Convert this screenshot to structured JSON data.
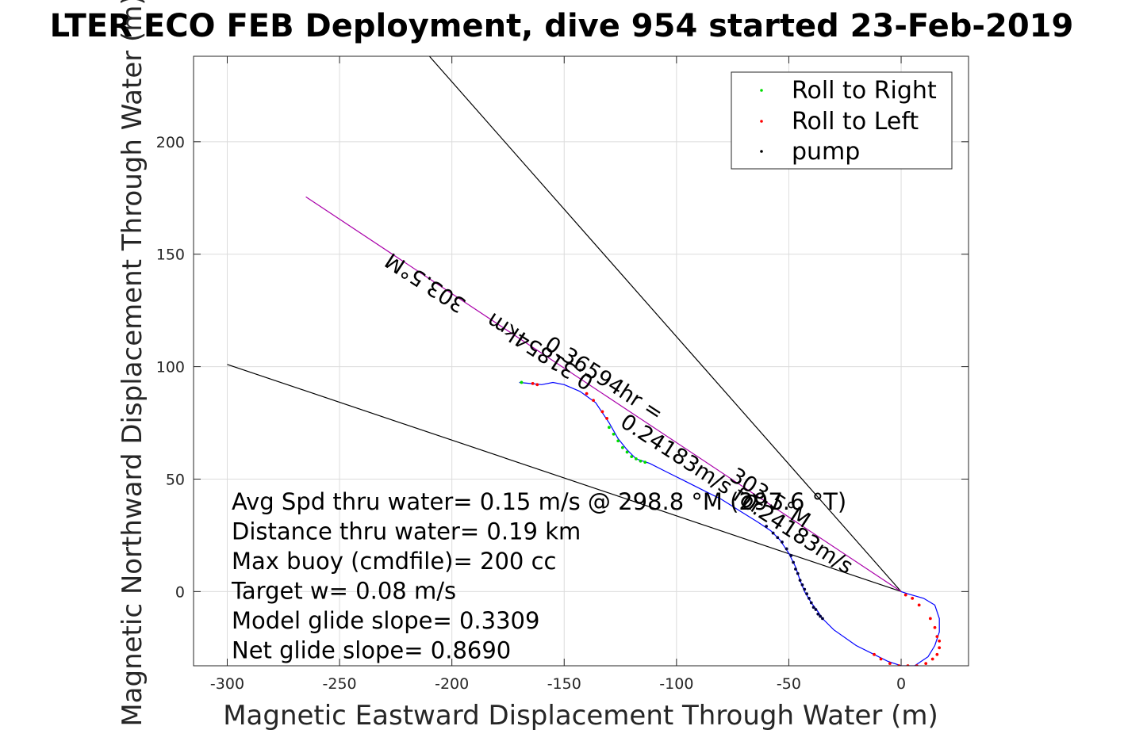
{
  "chart_data": {
    "type": "scatter",
    "title": "LTER ECO FEB Deployment, dive 954 started 23-Feb-2019",
    "xlabel": "Magnetic Eastward Displacement Through Water (m)",
    "ylabel": "Magnetic Northward Displacement Through Water (m)",
    "xlim": [
      -315,
      30
    ],
    "ylim": [
      -33,
      238
    ],
    "xticks": [
      -300,
      -250,
      -200,
      -150,
      -100,
      -50,
      0
    ],
    "yticks": [
      0,
      50,
      100,
      150,
      200
    ],
    "grid": true,
    "legend": {
      "placement": "top-right",
      "entries": [
        {
          "name": "Roll to Right",
          "color": "#00dd00"
        },
        {
          "name": "Roll to Left",
          "color": "#ff0000"
        },
        {
          "name": "pump",
          "color": "#000000"
        }
      ]
    },
    "track": {
      "name": "dive track",
      "color": "#0000ff",
      "x": [
        -170,
        -165,
        -160,
        -155,
        -150,
        -143,
        -136,
        -130,
        -126,
        -122,
        -118,
        -112,
        -104,
        -96,
        -88,
        -80,
        -72,
        -64,
        -58,
        -54,
        -50,
        -47,
        -45,
        -43,
        -40,
        -37,
        -35,
        -30,
        -20,
        -12,
        -6,
        0,
        6,
        12,
        15,
        17,
        17,
        15,
        10,
        3,
        0
      ],
      "y": [
        93,
        92.5,
        92,
        93,
        92,
        89,
        84,
        75,
        68,
        63,
        59,
        57,
        53,
        49,
        45,
        41,
        36,
        31,
        27,
        23,
        17,
        11,
        5,
        0,
        -5,
        -9,
        -12,
        -17,
        -24,
        -28,
        -31,
        -33,
        -33,
        -29,
        -24,
        -18,
        -12,
        -6,
        -3,
        -1,
        0
      ]
    },
    "rays": [
      {
        "x": [
          0,
          -210
        ],
        "y": [
          0,
          238
        ],
        "color": "#000000"
      },
      {
        "x": [
          0,
          -300
        ],
        "y": [
          0,
          101
        ],
        "color": "#000000"
      },
      {
        "x": [
          0,
          -265
        ],
        "y": [
          0,
          175.5
        ],
        "color": "#aa00aa"
      }
    ],
    "marker_groups": [
      {
        "legend": "Roll to Right",
        "color": "#00dd00",
        "x": [
          -169,
          -130,
          -128,
          -126,
          -124,
          -122,
          -120,
          -118,
          -116,
          -114
        ],
        "y": [
          93,
          73,
          70,
          67,
          64,
          62,
          60,
          59,
          58,
          57.5
        ]
      },
      {
        "legend": "Roll to Left",
        "color": "#ff0000",
        "x": [
          -164,
          -162,
          -140,
          -137,
          -133,
          -131,
          2,
          5,
          8,
          13,
          15,
          16,
          17,
          17,
          16,
          14,
          11,
          7,
          3,
          -1,
          -5,
          -9,
          -12
        ],
        "y": [
          92.5,
          92,
          88,
          85,
          80,
          77,
          -1.5,
          -3,
          -6,
          -12,
          -16,
          -20,
          -22,
          -25,
          -28,
          -30,
          -32,
          -33,
          -33,
          -33,
          -32,
          -30,
          -28
        ]
      },
      {
        "legend": "pump",
        "color": "#00003a",
        "x": [
          -60,
          -57,
          -55,
          -53,
          -51,
          -49,
          -48,
          -47,
          -46,
          -45,
          -44,
          -43,
          -42,
          -41,
          -40,
          -39,
          -38,
          -37,
          -36,
          -35
        ],
        "y": [
          29,
          26,
          24,
          22,
          19,
          16,
          13,
          10,
          8,
          5,
          3,
          1,
          -1,
          -3,
          -5,
          -7,
          -8,
          -10,
          -11,
          -12
        ]
      }
    ],
    "rotated_labels": [
      {
        "text": "303.5°M",
        "x": -210,
        "y": 140,
        "angle": 213
      },
      {
        "text": "0.31854km",
        "x": -159,
        "y": 109.5,
        "angle": 213
      },
      {
        "text": "0.36594hr =",
        "x": -134,
        "y": 92,
        "angle": 33
      },
      {
        "text": "0.24183m/s for",
        "x": -95,
        "y": 54,
        "angle": 33
      },
      {
        "text": "303.5°M",
        "x": -60,
        "y": 39,
        "angle": 33
      },
      {
        "text": "0.24183m/s",
        "x": -48,
        "y": 23,
        "angle": 33
      }
    ],
    "annotations": [
      "Avg Spd thru water=  0.15 m/s @ 298.8 °M (297.6 °T)",
      "Distance thru water=  0.19 km",
      "Max buoy (cmdfile)= 200 cc",
      "Target w= 0.08 m/s",
      "Model glide slope= 0.3309",
      "Net glide slope= 0.8690"
    ]
  }
}
